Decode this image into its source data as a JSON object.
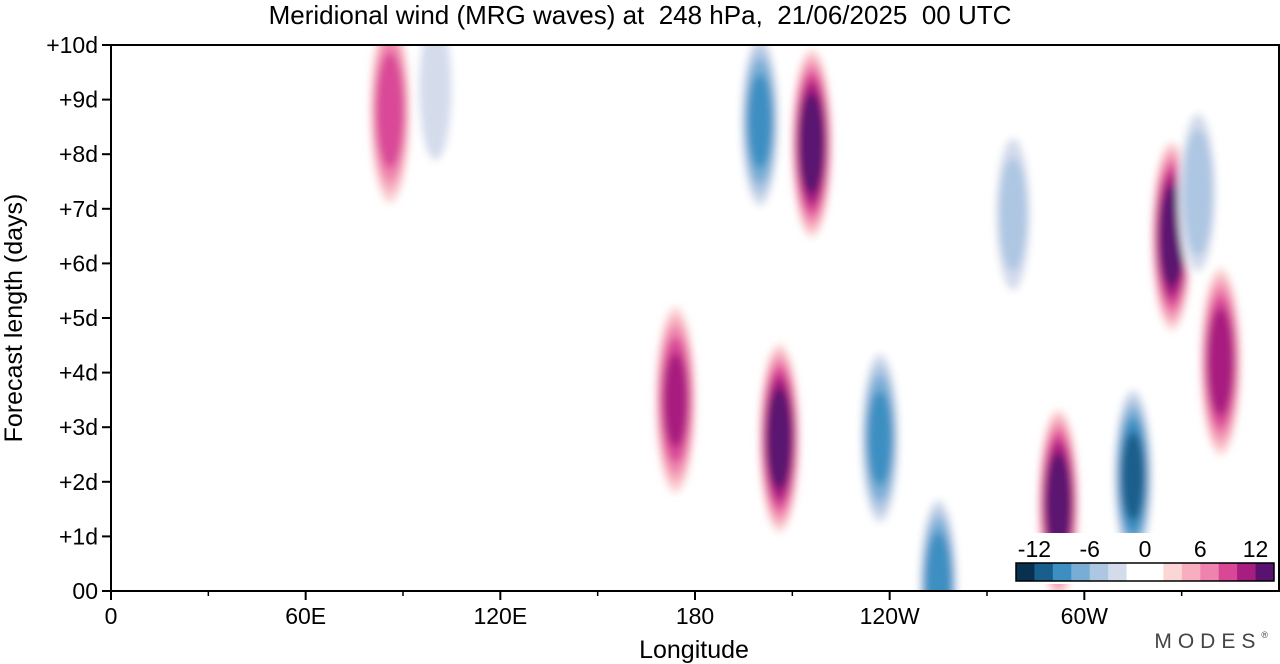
{
  "chart_data": {
    "type": "heatmap",
    "title": "Meridional wind (MRG waves) at  248 hPa,  21/06/2025  00 UTC",
    "xlabel": "Longitude",
    "ylabel": "Forecast length (days)",
    "x_ticks": [
      "0",
      "60E",
      "120E",
      "180",
      "120W",
      "60W"
    ],
    "x_tick_values": [
      0,
      60,
      120,
      180,
      240,
      300
    ],
    "x_minor_tick_values": [
      30,
      90,
      150,
      210,
      270,
      330
    ],
    "xlim": [
      0,
      360
    ],
    "y_ticks": [
      "00",
      "+1d",
      "+2d",
      "+3d",
      "+4d",
      "+5d",
      "+6d",
      "+7d",
      "+8d",
      "+9d",
      "+10d"
    ],
    "y_tick_values": [
      0,
      1,
      2,
      3,
      4,
      5,
      6,
      7,
      8,
      9,
      10
    ],
    "ylim": [
      0,
      10
    ],
    "colorbar": {
      "labels": [
        "-12",
        "-6",
        "0",
        "6",
        "12"
      ],
      "label_values": [
        -12,
        -6,
        0,
        6,
        12
      ],
      "range": [
        -14,
        14
      ],
      "colors": [
        "#08304f",
        "#1a5f8c",
        "#3d8fc2",
        "#78aed5",
        "#adc6e2",
        "#d4dcec",
        "#ffffff",
        "#ffffff",
        "#fbd6d6",
        "#f7aec0",
        "#ef83ad",
        "#d94897",
        "#a81d80",
        "#5a1270"
      ],
      "placement": "bottom-right"
    },
    "features": [
      {
        "lon": 86,
        "day": 8.8,
        "value": 9
      },
      {
        "lon": 100,
        "day": 9.2,
        "value": -5
      },
      {
        "lon": 174,
        "day": 3.5,
        "value": 10
      },
      {
        "lon": 206,
        "day": 2.8,
        "value": 13
      },
      {
        "lon": 216,
        "day": 8.2,
        "value": 13
      },
      {
        "lon": 200,
        "day": 8.6,
        "value": -10
      },
      {
        "lon": 237,
        "day": 2.8,
        "value": -10
      },
      {
        "lon": 255,
        "day": 0.1,
        "value": -11
      },
      {
        "lon": 292,
        "day": 1.6,
        "value": 13
      },
      {
        "lon": 315,
        "day": 2.1,
        "value": -12
      },
      {
        "lon": 327,
        "day": 6.5,
        "value": 13
      },
      {
        "lon": 342,
        "day": 4.2,
        "value": 11
      },
      {
        "lon": 278,
        "day": 6.9,
        "value": -6
      },
      {
        "lon": 335,
        "day": 7.3,
        "value": -7
      }
    ]
  },
  "credit": {
    "text": "MODES",
    "mark": "®"
  }
}
